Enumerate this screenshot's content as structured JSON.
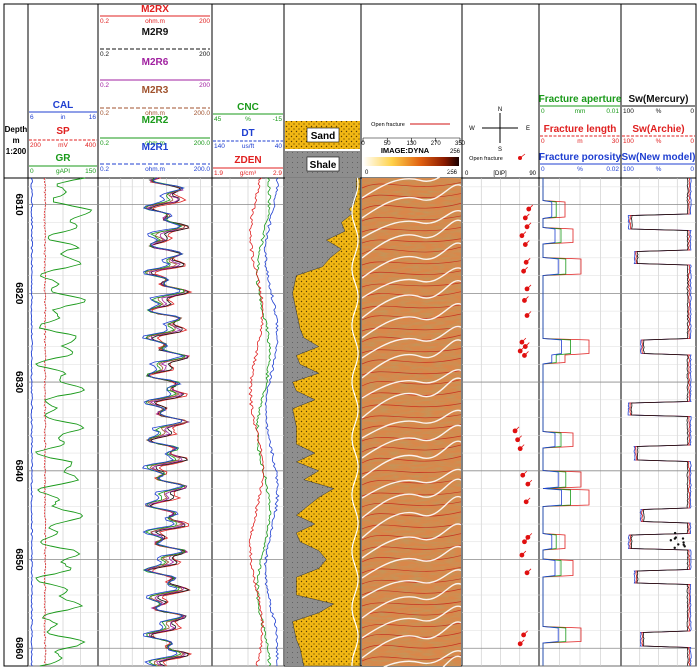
{
  "chart_data": {
    "type": "line",
    "title": "",
    "depth_axis": {
      "label": "Depth",
      "unit": "m",
      "scale": "1:200",
      "range": [
        6807,
        6862
      ],
      "ticks": [
        6810,
        6820,
        6830,
        6840,
        6850,
        6860
      ]
    },
    "tracks": [
      {
        "id": "track1",
        "curves": [
          {
            "name": "CAL",
            "min": "6",
            "unit": "in",
            "max": "16",
            "color": "#1f3fd1"
          },
          {
            "name": "SP",
            "min": "200",
            "unit": "mV",
            "max": "400",
            "color": "#e02020"
          },
          {
            "name": "GR",
            "min": "0",
            "unit": "gAPI",
            "max": "150",
            "color": "#1a9a1a"
          }
        ]
      },
      {
        "id": "track2",
        "curves": [
          {
            "name": "M2RX",
            "min": "0.2",
            "unit": "ohm.m",
            "max": "200",
            "color": "#e02020"
          },
          {
            "name": "M2R9",
            "min": "0.2",
            "unit": "",
            "max": "200",
            "color": "#111111"
          },
          {
            "name": "M2R6",
            "min": "0.2",
            "unit": "",
            "max": "200",
            "color": "#a020a0"
          },
          {
            "name": "M2R3",
            "min": "0.2",
            "unit": "ohm.m",
            "max": "200.0",
            "color": "#a0522d"
          },
          {
            "name": "M2R2",
            "min": "0.2",
            "unit": "ohm.m",
            "max": "200.0",
            "color": "#1a9a1a"
          },
          {
            "name": "M2R1",
            "min": "0.2",
            "unit": "ohm.m",
            "max": "200.0",
            "color": "#1f3fd1"
          }
        ]
      },
      {
        "id": "track3",
        "curves": [
          {
            "name": "CNC",
            "min": "45",
            "unit": "%",
            "max": "-15",
            "color": "#1a9a1a"
          },
          {
            "name": "DT",
            "min": "140",
            "unit": "us/ft",
            "max": "40",
            "color": "#1f3fd1"
          },
          {
            "name": "ZDEN",
            "min": "1.9",
            "unit": "g/cm³",
            "max": "2.9",
            "color": "#e02020"
          }
        ]
      },
      {
        "id": "lithology",
        "legend": [
          "Sand",
          "Shale"
        ],
        "sand_fraction": [
          [
            6807,
            0.05
          ],
          [
            6809,
            0.05
          ],
          [
            6810,
            0.08
          ],
          [
            6810.5,
            0.15
          ],
          [
            6811,
            0.1
          ],
          [
            6812,
            0.25
          ],
          [
            6813,
            0.2
          ],
          [
            6814,
            0.45
          ],
          [
            6815,
            0.25
          ],
          [
            6816,
            0.4
          ],
          [
            6817,
            0.5
          ],
          [
            6818,
            0.85
          ],
          [
            6820,
            0.9
          ],
          [
            6822,
            0.85
          ],
          [
            6824,
            0.8
          ],
          [
            6825,
            0.75
          ],
          [
            6826,
            0.55
          ],
          [
            6827,
            0.85
          ],
          [
            6828,
            0.8
          ],
          [
            6829,
            0.55
          ],
          [
            6830,
            0.9
          ],
          [
            6831,
            0.85
          ],
          [
            6832,
            0.6
          ],
          [
            6833,
            0.9
          ],
          [
            6835,
            0.85
          ],
          [
            6837,
            0.85
          ],
          [
            6838,
            0.6
          ],
          [
            6839,
            0.85
          ],
          [
            6840,
            0.55
          ],
          [
            6841,
            0.75
          ],
          [
            6842,
            0.35
          ],
          [
            6843,
            0.55
          ],
          [
            6844,
            0.7
          ],
          [
            6845,
            0.85
          ],
          [
            6846,
            0.6
          ],
          [
            6847,
            0.85
          ],
          [
            6848,
            0.8
          ],
          [
            6849,
            0.55
          ],
          [
            6850,
            0.45
          ],
          [
            6851,
            0.55
          ],
          [
            6852,
            0.85
          ],
          [
            6854,
            0.85
          ],
          [
            6855,
            0.35
          ],
          [
            6856,
            0.55
          ],
          [
            6857,
            0.9
          ],
          [
            6859,
            0.85
          ],
          [
            6860,
            0.8
          ],
          [
            6862,
            0.75
          ]
        ]
      },
      {
        "id": "image",
        "header": "IMAGE:DYNA",
        "legend_line": "Open fracture",
        "scale_ticks": [
          "0",
          "50",
          "130",
          "270",
          "350"
        ],
        "color_scale": [
          "0",
          "256"
        ]
      },
      {
        "id": "dip",
        "compass": [
          "N",
          "E",
          "S",
          "W"
        ],
        "legend": "Open fracture",
        "scale": [
          "0",
          "[DIP]",
          "90"
        ],
        "points": [
          [
            6810.5,
            78
          ],
          [
            6811.5,
            74
          ],
          [
            6812.5,
            76
          ],
          [
            6813.5,
            70
          ],
          [
            6814.5,
            74
          ],
          [
            6816.5,
            75
          ],
          [
            6817.5,
            72
          ],
          [
            6819.5,
            76
          ],
          [
            6820.8,
            73
          ],
          [
            6822.5,
            76
          ],
          [
            6825.5,
            70
          ],
          [
            6826,
            74
          ],
          [
            6826.5,
            68
          ],
          [
            6827,
            73
          ],
          [
            6835.5,
            62
          ],
          [
            6836.5,
            65
          ],
          [
            6837.5,
            68
          ],
          [
            6840.5,
            71
          ],
          [
            6841.5,
            77
          ],
          [
            6843.5,
            75
          ],
          [
            6847.5,
            77
          ],
          [
            6848,
            73
          ],
          [
            6849.5,
            70
          ],
          [
            6851.5,
            76
          ],
          [
            6858.5,
            72
          ],
          [
            6859.5,
            68
          ]
        ]
      },
      {
        "id": "fracture",
        "curves": [
          {
            "name": "Fracture aperture",
            "min": "0",
            "unit": "mm",
            "max": "0.01",
            "color": "#1a9a1a"
          },
          {
            "name": "Fracture length",
            "min": "0",
            "unit": "m",
            "max": "30",
            "color": "#e02020"
          },
          {
            "name": "Fracture porosity",
            "min": "0",
            "unit": "%",
            "max": "0.02",
            "color": "#1f3fd1"
          }
        ]
      },
      {
        "id": "saturation",
        "curves": [
          {
            "name": "Sw(Mercury)",
            "min": "100",
            "unit": "%",
            "max": "0",
            "color": "#111111"
          },
          {
            "name": "Sw(Archie)",
            "min": "100",
            "unit": "%",
            "max": "0",
            "color": "#e02020"
          },
          {
            "name": "Sw(New model)",
            "min": "100",
            "unit": "%",
            "max": "0",
            "color": "#1f3fd1"
          }
        ]
      }
    ]
  }
}
